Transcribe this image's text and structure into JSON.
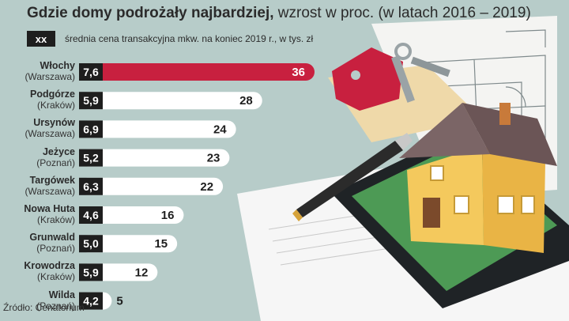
{
  "title": "Gdzie domy podrożały najbardziej,",
  "subtitle": "wzrost w proc. (w latach 2016 – 2019)",
  "legend": {
    "box_label": "xx",
    "text": "średnia cena transakcyjna mkw. na koniec 2019 r., w tys. zł"
  },
  "source": "Źródło: Cenatorium",
  "colors": {
    "highlight": "#c8203f",
    "bar": "#ffffff",
    "price_box": "#1e1e1e",
    "background": "#b7ccc9"
  },
  "chart_data": {
    "type": "bar",
    "orientation": "horizontal",
    "title": "Gdzie domy podrożały najbardziej,",
    "subtitle": "wzrost w proc. (w latach 2016 – 2019)",
    "categories": [
      "Włochy",
      "Podgórze",
      "Ursynów",
      "Jeżyce",
      "Targówek",
      "Nowa Huta",
      "Grunwald",
      "Krowodrza",
      "Wilda"
    ],
    "cities": [
      "(Warszawa)",
      "(Kraków)",
      "(Warszawa)",
      "(Poznań)",
      "(Warszawa)",
      "(Kraków)",
      "(Poznań)",
      "(Kraków)",
      "(Poznań)"
    ],
    "prices": [
      "7,6",
      "5,9",
      "6,9",
      "5,2",
      "6,3",
      "4,6",
      "5,0",
      "5,9",
      "4,2"
    ],
    "values": [
      36,
      28,
      24,
      23,
      22,
      16,
      15,
      12,
      5
    ],
    "highlight_index": 0
  }
}
